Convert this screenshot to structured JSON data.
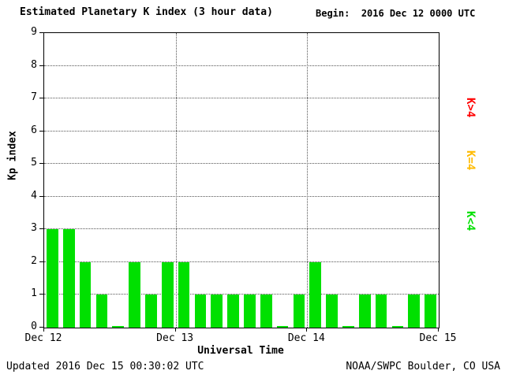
{
  "header": {
    "title": "Estimated Planetary K index (3 hour data)",
    "begin_label": "Begin:",
    "begin_value": "2016 Dec 12 0000 UTC"
  },
  "footer": {
    "updated": "Updated 2016 Dec 15 00:30:02 UTC",
    "source": "NOAA/SWPC Boulder, CO USA"
  },
  "legend": {
    "items": [
      {
        "label": "K>4",
        "color": "#ff0000"
      },
      {
        "label": "K=4",
        "color": "#ffbb00"
      },
      {
        "label": "K<4",
        "color": "#00e000"
      }
    ]
  },
  "colors": {
    "bar_green": "#00e000",
    "axis": "#000000",
    "grid": "#555555"
  },
  "chart_data": {
    "type": "bar",
    "title": "Estimated Planetary K index (3 hour data)",
    "xlabel": "Universal Time",
    "ylabel": "Kp index",
    "ylim": [
      0,
      9
    ],
    "yticks": [
      0,
      1,
      2,
      3,
      4,
      5,
      6,
      7,
      8,
      9
    ],
    "x_tick_labels": [
      "Dec 12",
      "Dec 13",
      "Dec 14",
      "Dec 15"
    ],
    "grid": "dotted horizontal at each Kp integer, dotted vertical at day boundaries",
    "legend_position": "right, rotated vertical labels",
    "bars_per_day": 8,
    "bar_interval_hours": 3,
    "values": [
      3,
      3,
      2,
      1,
      0,
      2,
      1,
      2,
      2,
      1,
      1,
      1,
      1,
      1,
      0,
      1,
      2,
      1,
      0,
      1,
      1,
      0,
      1,
      1
    ],
    "bar_color": "#00e000"
  }
}
